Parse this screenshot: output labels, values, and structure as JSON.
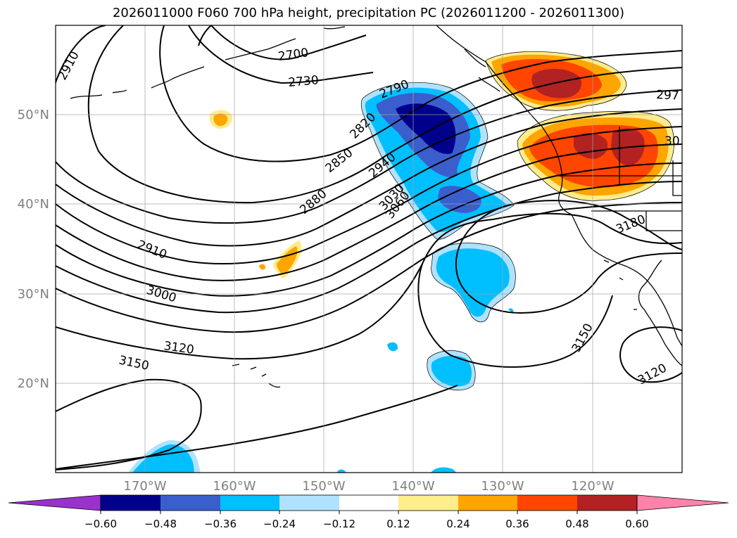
{
  "title": "2026011000 F060 700 hPa height, precipitation PC (2026011200 - 2026011300)",
  "map": {
    "lon_range": [
      -180,
      -110
    ],
    "lat_range": [
      10,
      60
    ],
    "lon_ticks": [
      {
        "lon": -170,
        "label": "170°W"
      },
      {
        "lon": -160,
        "label": "160°W"
      },
      {
        "lon": -150,
        "label": "150°W"
      },
      {
        "lon": -140,
        "label": "140°W"
      },
      {
        "lon": -130,
        "label": "130°W"
      },
      {
        "lon": -120,
        "label": "120°W"
      }
    ],
    "lat_ticks": [
      {
        "lat": 50,
        "label": "50°N"
      },
      {
        "lat": 40,
        "label": "40°N"
      },
      {
        "lat": 30,
        "label": "30°N"
      },
      {
        "lat": 20,
        "label": "20°N"
      }
    ],
    "grid": true,
    "contour_labels": [
      "2910",
      "2700",
      "2730",
      "2790",
      "2820",
      "2850",
      "2880",
      "2940",
      "3030",
      "3060",
      "2910",
      "3000",
      "3120",
      "3150",
      "3180",
      "3150",
      "3120",
      "297",
      "30"
    ]
  },
  "colorbar": {
    "colors": {
      "under": "#9932cc",
      "c1": "#00008b",
      "c2": "#3a5fcd",
      "c3": "#00bfff",
      "c4": "#b0e2ff",
      "c5": "#ffffff",
      "c6": "#ffec8b",
      "c7": "#ffa500",
      "c8": "#ff4500",
      "c9": "#b22222",
      "over": "#ff82ab"
    },
    "tick_labels": [
      "−0.60",
      "−0.48",
      "−0.36",
      "−0.24",
      "−0.12",
      "0.12",
      "0.24",
      "0.36",
      "0.48",
      "0.60"
    ]
  }
}
